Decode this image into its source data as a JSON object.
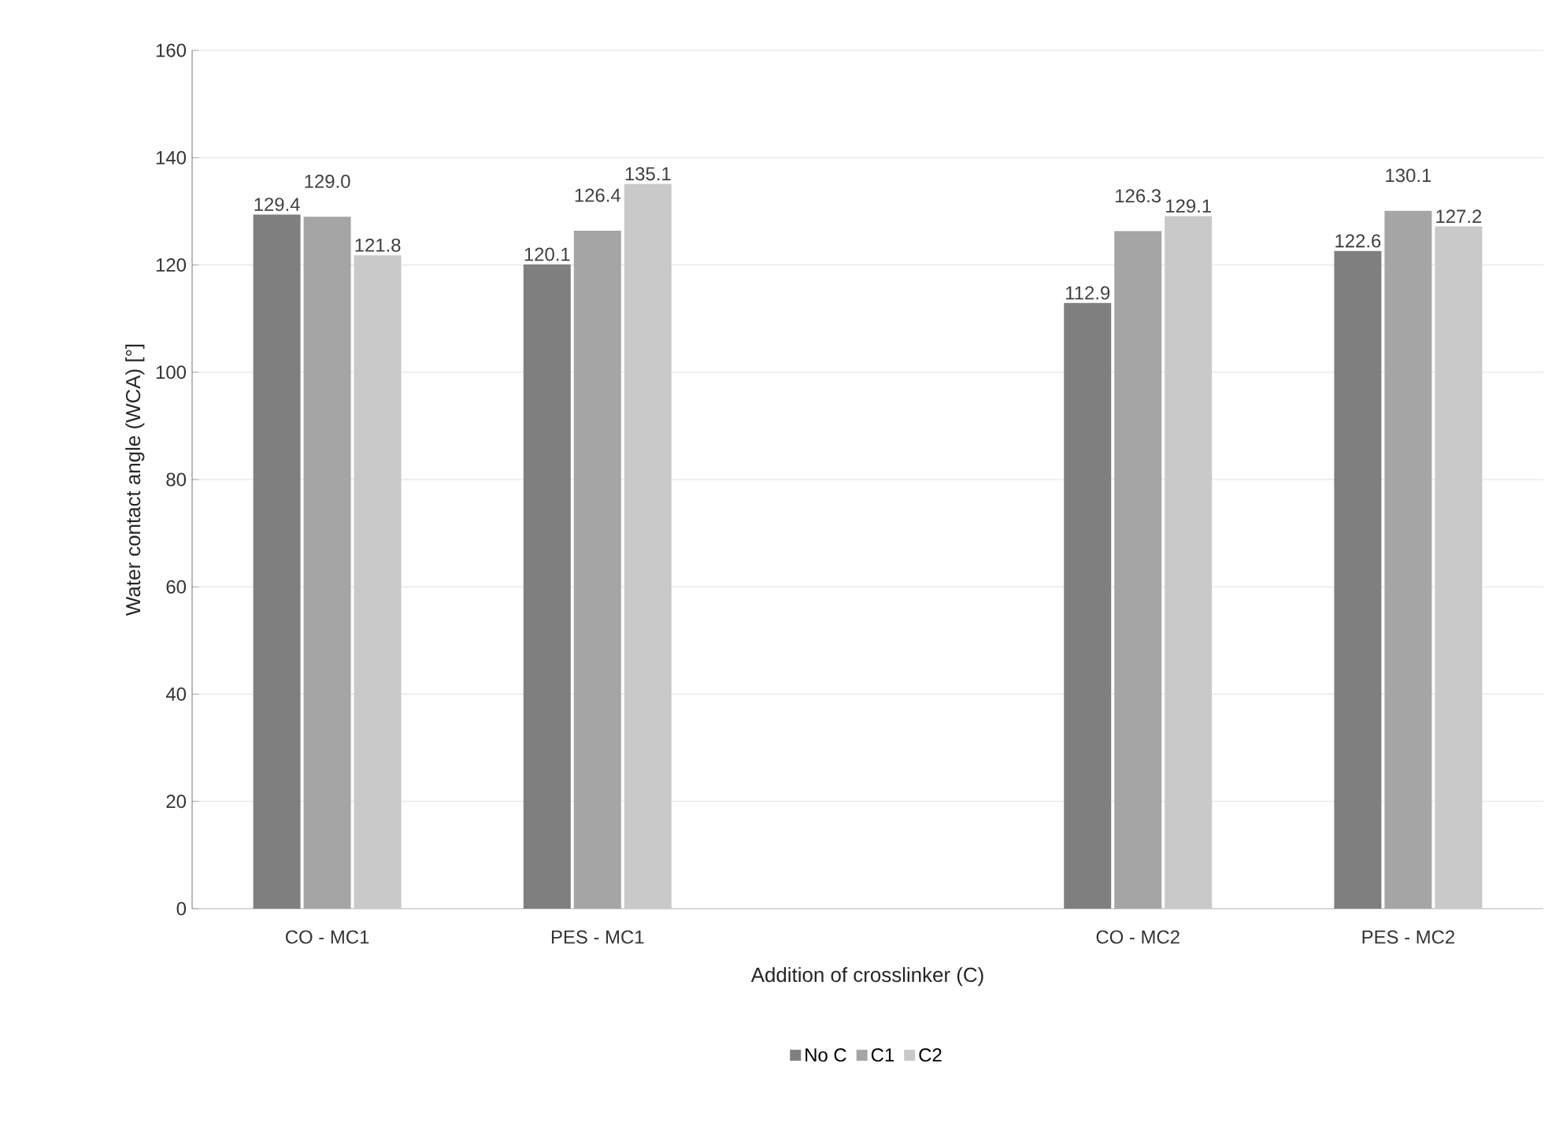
{
  "chart_data": {
    "type": "bar",
    "xlabel": "Addition of crosslinker (C)",
    "ylabel": "Water contact angle (WCA) [°]",
    "categories": [
      "CO - MC1",
      "PES - MC1",
      null,
      "CO - MC2",
      "PES - MC2"
    ],
    "series": [
      {
        "name": "No C",
        "color": "#7f7f7f",
        "values": [
          129.4,
          120.1,
          null,
          112.9,
          122.6
        ],
        "value_labels": [
          "129.4",
          "120.1",
          null,
          "112.9",
          "122.6"
        ]
      },
      {
        "name": "C1",
        "color": "#a5a5a5",
        "values": [
          129.0,
          126.4,
          null,
          126.3,
          130.1
        ],
        "value_labels": [
          "129.0",
          "126.4",
          null,
          "126.3",
          "130.1"
        ]
      },
      {
        "name": "C2",
        "color": "#c9c9c9",
        "values": [
          121.8,
          135.1,
          null,
          129.1,
          127.2
        ],
        "value_labels": [
          "121.8",
          "135.1",
          null,
          "129.1",
          "127.2"
        ]
      }
    ],
    "ylim": [
      0,
      160
    ],
    "yticks": [
      0,
      20,
      40,
      60,
      80,
      100,
      120,
      140,
      160
    ],
    "grid": "y",
    "legend": "bottom"
  }
}
